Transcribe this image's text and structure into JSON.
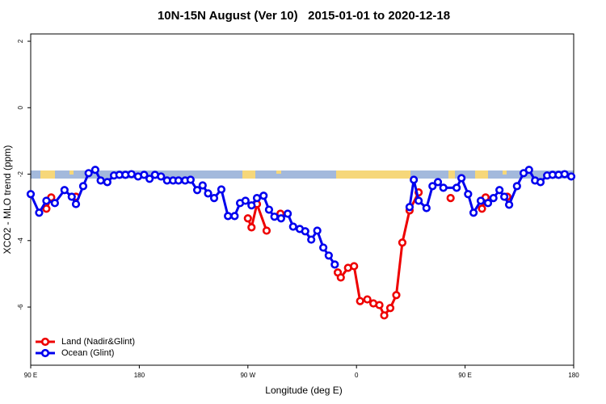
{
  "chart_data": {
    "type": "line",
    "title": "10N-15N August (Ver 10)   2015-01-01 to 2020-12-18",
    "xlabel": "Longitude (deg E)",
    "ylabel": "XCO2 - MLO trend (ppm)",
    "xlim": [
      90,
      540
    ],
    "xticks": [
      {
        "value": 90,
        "label": "90 E"
      },
      {
        "value": 180,
        "label": "180"
      },
      {
        "value": 270,
        "label": "90 W"
      },
      {
        "value": 360,
        "label": "0"
      },
      {
        "value": 450,
        "label": "90 E"
      },
      {
        "value": 540,
        "label": "180"
      }
    ],
    "ylim": [
      -7.75,
      2.22
    ],
    "yticks": [
      2,
      0,
      -2,
      -4,
      -6
    ],
    "legend": "bottom-left",
    "series": [
      {
        "name": "Land (Nadir&Glint)",
        "color": "#ee0000",
        "x": [
          103,
          107,
          116,
          127.5,
          140,
          270,
          273,
          277.5,
          285.5,
          290,
          297,
          320,
          344.5,
          347,
          353,
          358,
          363,
          369,
          374,
          379,
          383,
          388,
          393,
          398,
          404,
          411.5,
          425,
          438,
          450,
          464,
          467,
          475,
          485
        ],
        "values": [
          -3.04,
          -2.7,
          null,
          -2.68,
          null,
          -3.33,
          -3.6,
          -2.9,
          -3.7,
          null,
          -3.19,
          null,
          -4.96,
          -5.11,
          -4.82,
          -4.77,
          -5.82,
          -5.77,
          -5.89,
          -5.94,
          -6.25,
          -6.03,
          -5.64,
          -4.06,
          -3.09,
          -2.55,
          null,
          -2.72,
          null,
          -3.04,
          -2.7,
          null,
          -2.68
        ]
      },
      {
        "name": "Ocean (Glint)",
        "color": "#0000ee",
        "x": [
          90,
          97,
          103,
          110,
          118,
          124,
          127.5,
          133.5,
          138,
          143.5,
          148,
          153.5,
          159,
          163.5,
          168.5,
          173.5,
          179,
          184,
          188.5,
          193,
          198,
          203,
          208,
          212.5,
          218,
          222.5,
          228,
          232.5,
          237,
          242,
          248,
          253.5,
          259,
          263.5,
          268,
          273,
          277.5,
          283,
          287.5,
          292,
          297.5,
          303,
          307.5,
          313,
          317.5,
          322.5,
          327.5,
          332.5,
          337,
          342,
          370,
          404,
          407.5,
          411.5,
          418,
          423,
          427.5,
          432,
          443,
          447,
          452.5,
          457,
          463,
          469,
          473.5,
          478.5,
          482.5,
          486.5,
          493,
          498.5,
          503,
          508,
          512.5,
          518,
          522.5,
          527.5,
          532.5,
          538
        ],
        "values": [
          -2.6,
          -3.16,
          -2.8,
          -2.87,
          -2.48,
          -2.68,
          -2.9,
          -2.36,
          -1.97,
          -1.87,
          -2.19,
          -2.24,
          -2.04,
          -2.02,
          -2.02,
          -2.0,
          -2.07,
          -2.02,
          -2.14,
          -2.02,
          -2.07,
          -2.19,
          -2.19,
          -2.19,
          -2.19,
          -2.17,
          -2.48,
          -2.34,
          -2.58,
          -2.72,
          -2.46,
          -3.26,
          -3.26,
          -2.87,
          -2.8,
          -2.94,
          -2.72,
          -2.65,
          -3.07,
          -3.28,
          -3.33,
          -3.19,
          -3.58,
          -3.65,
          -3.72,
          -3.97,
          -3.7,
          -4.21,
          -4.45,
          -4.72,
          null,
          -2.99,
          -2.17,
          -2.8,
          -3.02,
          -2.36,
          -2.24,
          -2.41,
          -2.41,
          -2.12,
          -2.6,
          -3.16,
          -2.8,
          -2.87,
          -2.72,
          -2.48,
          -2.68,
          -2.92,
          -2.36,
          -1.97,
          -1.87,
          -2.19,
          -2.24,
          -2.04,
          -2.02,
          -2.02,
          -2.0,
          -2.07
        ]
      }
    ]
  }
}
